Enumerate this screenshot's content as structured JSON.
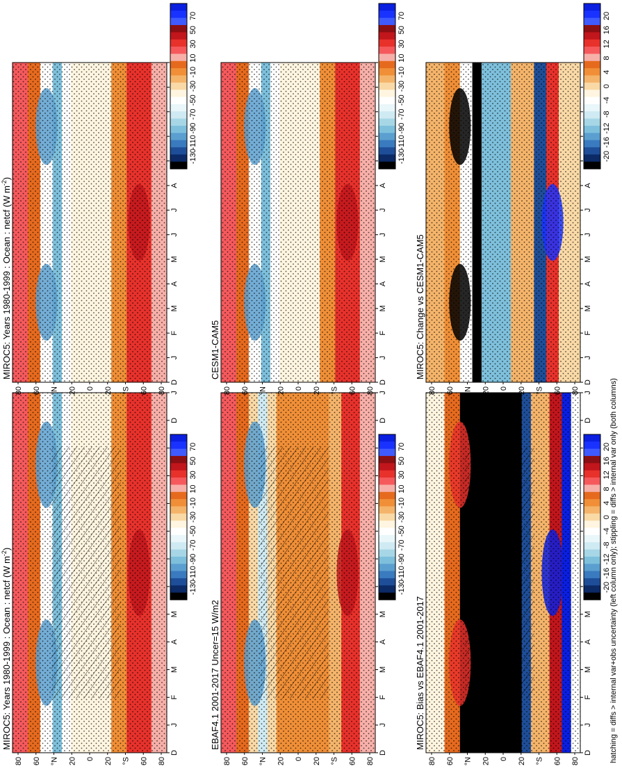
{
  "figure": {
    "footnote": "hatching = diffs > internal var+obs uncertainty (left column only); stippling = diffs > internal var only (both columns)"
  },
  "chart_data": [
    {
      "id": "p_left_top",
      "type": "heatmap",
      "title": "MIROC5: Years 1980-1999 : Ocean : netcf (W m",
      "title_sup": "-2",
      "title_close": ")",
      "months": [
        "D",
        "J",
        "F",
        "M",
        "A",
        "M",
        "J",
        "J",
        "A",
        "S",
        "O",
        "N",
        "D",
        "J"
      ],
      "lat_labels": [
        "80",
        "60",
        "°N",
        "20",
        "0",
        "20",
        "°S",
        "60",
        "80"
      ],
      "colorbar": {
        "levels": [
          "70",
          "50",
          "30",
          "10",
          "-10",
          "-30",
          "-50",
          "-70",
          "-90",
          "-110",
          "-130"
        ],
        "colors": [
          "#0a1fe0",
          "#1a32ff",
          "#3f5bff",
          "#8a0f12",
          "#c1161c",
          "#e8312b",
          "#f5595c",
          "#f7b0a9",
          "#e66a1e",
          "#f08f37",
          "#f4b46a",
          "#f9d9a6",
          "#fff5e0",
          "#ffffff",
          "#e9f6fa",
          "#cfeaf2",
          "#a7d7e6",
          "#7ec0dc",
          "#5a9fcf",
          "#3a7abf",
          "#1f4e98",
          "#0b2a66",
          "#000000"
        ]
      },
      "scheme": "abs",
      "hatch": true,
      "stipple": true
    },
    {
      "id": "p_right_top",
      "type": "heatmap",
      "title": "MIROC5: Years 1980-1999 : Ocean : netcf (W m",
      "title_sup": "-2",
      "title_close": ")",
      "months": [
        "D",
        "J",
        "F",
        "M",
        "A",
        "M",
        "J",
        "J",
        "A",
        "S",
        "O",
        "N",
        "D",
        "J"
      ],
      "lat_labels": [
        "80",
        "60",
        "°N",
        "20",
        "0",
        "20",
        "°S",
        "60",
        "80"
      ],
      "colorbar": {
        "levels": [
          "70",
          "50",
          "30",
          "10",
          "-10",
          "-30",
          "-50",
          "-70",
          "-90",
          "-110",
          "-130"
        ],
        "colors": [
          "#0a1fe0",
          "#1a32ff",
          "#3f5bff",
          "#8a0f12",
          "#c1161c",
          "#e8312b",
          "#f5595c",
          "#f7b0a9",
          "#e66a1e",
          "#f08f37",
          "#f4b46a",
          "#f9d9a6",
          "#fff5e0",
          "#ffffff",
          "#e9f6fa",
          "#cfeaf2",
          "#a7d7e6",
          "#7ec0dc",
          "#5a9fcf",
          "#3a7abf",
          "#1f4e98",
          "#0b2a66",
          "#000000"
        ]
      },
      "scheme": "abs",
      "hatch": false,
      "stipple": true
    },
    {
      "id": "p_left_mid",
      "type": "heatmap",
      "title": "EBAF4.1 2001-2017 Uncer=15 W/m2",
      "months": [
        "D",
        "J",
        "F",
        "M",
        "A",
        "M",
        "J",
        "J",
        "A",
        "S",
        "O",
        "N",
        "D",
        "J"
      ],
      "lat_labels": [
        "80",
        "60",
        "°N",
        "20",
        "0",
        "20",
        "°S",
        "60",
        "80"
      ],
      "colorbar": {
        "levels": [
          "70",
          "50",
          "30",
          "10",
          "-10",
          "-30",
          "-50",
          "-70",
          "-90",
          "-110",
          "-130"
        ],
        "colors": [
          "#0a1fe0",
          "#1a32ff",
          "#3f5bff",
          "#8a0f12",
          "#c1161c",
          "#e8312b",
          "#f5595c",
          "#f7b0a9",
          "#e66a1e",
          "#f08f37",
          "#f4b46a",
          "#f9d9a6",
          "#fff5e0",
          "#ffffff",
          "#e9f6fa",
          "#cfeaf2",
          "#a7d7e6",
          "#7ec0dc",
          "#5a9fcf",
          "#3a7abf",
          "#1f4e98",
          "#0b2a66",
          "#000000"
        ]
      },
      "scheme": "obs",
      "hatch": true,
      "stipple": true
    },
    {
      "id": "p_right_mid",
      "type": "heatmap",
      "title": "CESM1-CAM5",
      "months": [
        "D",
        "J",
        "F",
        "M",
        "A",
        "M",
        "J",
        "J",
        "A",
        "S",
        "O",
        "N",
        "D",
        "J"
      ],
      "lat_labels": [
        "80",
        "60",
        "°N",
        "20",
        "0",
        "20",
        "°S",
        "60",
        "80"
      ],
      "colorbar": {
        "levels": [
          "70",
          "50",
          "30",
          "10",
          "-10",
          "-30",
          "-50",
          "-70",
          "-90",
          "-110",
          "-130"
        ],
        "colors": [
          "#0a1fe0",
          "#1a32ff",
          "#3f5bff",
          "#8a0f12",
          "#c1161c",
          "#e8312b",
          "#f5595c",
          "#f7b0a9",
          "#e66a1e",
          "#f08f37",
          "#f4b46a",
          "#f9d9a6",
          "#fff5e0",
          "#ffffff",
          "#e9f6fa",
          "#cfeaf2",
          "#a7d7e6",
          "#7ec0dc",
          "#5a9fcf",
          "#3a7abf",
          "#1f4e98",
          "#0b2a66",
          "#000000"
        ]
      },
      "scheme": "abs",
      "hatch": false,
      "stipple": true
    },
    {
      "id": "p_left_bot",
      "type": "heatmap",
      "title": "MIROC5: Bias vs EBAF4.1 2001-2017",
      "months": [
        "D",
        "J",
        "F",
        "M",
        "A",
        "M",
        "J",
        "J",
        "A",
        "S",
        "O",
        "N",
        "D",
        "J"
      ],
      "lat_labels": [
        "80",
        "60",
        "°N",
        "20",
        "0",
        "20",
        "°S",
        "60",
        "80"
      ],
      "colorbar": {
        "levels": [
          "20",
          "16",
          "12",
          "8",
          "4",
          "0",
          "-4",
          "-8",
          "-12",
          "-16",
          "-20"
        ],
        "colors": [
          "#0a1fe0",
          "#1a32ff",
          "#3f5bff",
          "#8a0f12",
          "#c1161c",
          "#e8312b",
          "#f5595c",
          "#f7b0a9",
          "#e66a1e",
          "#f08f37",
          "#f4b46a",
          "#f9d9a6",
          "#fff5e0",
          "#ffffff",
          "#e9f6fa",
          "#cfeaf2",
          "#a7d7e6",
          "#7ec0dc",
          "#5a9fcf",
          "#3a7abf",
          "#1f4e98",
          "#0b2a66",
          "#000000"
        ]
      },
      "scheme": "bias",
      "hatch": true,
      "stipple": true
    },
    {
      "id": "p_right_bot",
      "type": "heatmap",
      "title": "MIROC5: Change vs CESM1-CAM5",
      "months": [
        "D",
        "J",
        "F",
        "M",
        "A",
        "M",
        "J",
        "J",
        "A",
        "S",
        "O",
        "N",
        "D",
        "J"
      ],
      "lat_labels": [
        "80",
        "60",
        "°N",
        "20",
        "0",
        "20",
        "°S",
        "60",
        "80"
      ],
      "colorbar": {
        "levels": [
          "20",
          "16",
          "12",
          "8",
          "4",
          "0",
          "-4",
          "-8",
          "-12",
          "-16",
          "-20"
        ],
        "colors": [
          "#0a1fe0",
          "#1a32ff",
          "#3f5bff",
          "#8a0f12",
          "#c1161c",
          "#e8312b",
          "#f5595c",
          "#f7b0a9",
          "#e66a1e",
          "#f08f37",
          "#f4b46a",
          "#f9d9a6",
          "#fff5e0",
          "#ffffff",
          "#e9f6fa",
          "#cfeaf2",
          "#a7d7e6",
          "#7ec0dc",
          "#5a9fcf",
          "#3a7abf",
          "#1f4e98",
          "#0b2a66",
          "#000000"
        ]
      },
      "scheme": "change",
      "hatch": false,
      "stipple": true
    }
  ]
}
